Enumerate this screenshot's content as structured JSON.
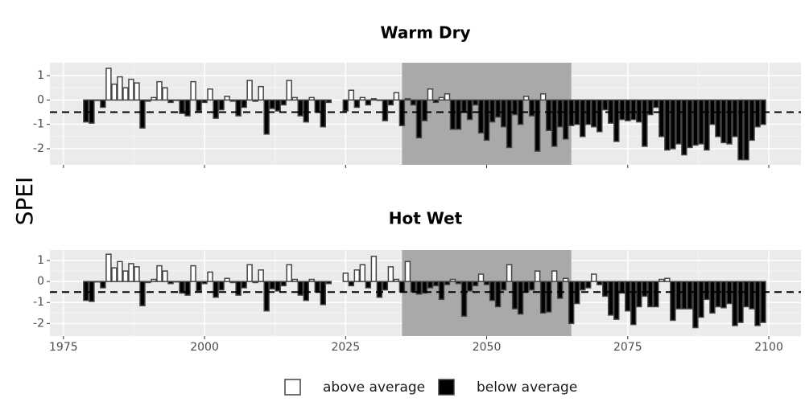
{
  "ylabel": "SPEI",
  "legend": [
    {
      "label": "above average",
      "color": "#ffffff"
    },
    {
      "label": "below average",
      "color": "#000000"
    }
  ],
  "chart_data": [
    {
      "type": "bar",
      "title": "Warm Dry",
      "hline": -0.5,
      "highlight": [
        2035,
        2065
      ],
      "grid": true,
      "xtick_labels": false,
      "xlim": [
        1972.6,
        2105.7
      ],
      "xticks": [
        1975,
        2000,
        2025,
        2050,
        2075,
        2100
      ],
      "ylim": [
        -2.66,
        1.53
      ],
      "yticks": [
        1,
        0,
        -1,
        -2
      ],
      "x": [
        1979,
        1980,
        1981,
        1982,
        1983,
        1984,
        1985,
        1986,
        1987,
        1988,
        1989,
        1990,
        1991,
        1992,
        1993,
        1994,
        1995,
        1996,
        1997,
        1998,
        1999,
        2000,
        2001,
        2002,
        2003,
        2004,
        2005,
        2006,
        2007,
        2008,
        2009,
        2010,
        2011,
        2012,
        2013,
        2014,
        2015,
        2016,
        2017,
        2018,
        2019,
        2020,
        2021,
        2022,
        2023,
        2024,
        2025,
        2026,
        2027,
        2028,
        2029,
        2030,
        2031,
        2032,
        2033,
        2034,
        2035,
        2036,
        2037,
        2038,
        2039,
        2040,
        2041,
        2042,
        2043,
        2044,
        2045,
        2046,
        2047,
        2048,
        2049,
        2050,
        2051,
        2052,
        2053,
        2054,
        2055,
        2056,
        2057,
        2058,
        2059,
        2060,
        2061,
        2062,
        2063,
        2064,
        2065,
        2066,
        2067,
        2068,
        2069,
        2070,
        2071,
        2072,
        2073,
        2074,
        2075,
        2076,
        2077,
        2078,
        2079,
        2080,
        2081,
        2082,
        2083,
        2084,
        2085,
        2086,
        2087,
        2088,
        2089,
        2090,
        2091,
        2092,
        2093,
        2094,
        2095,
        2096,
        2097,
        2098,
        2099
      ],
      "series": [
        {
          "values": [
            -0.9,
            -0.95,
            0,
            -0.3,
            1.3,
            0.65,
            0.95,
            0.5,
            0.85,
            0.7,
            -1.15,
            -0.05,
            0.1,
            0.75,
            0.5,
            -0.1,
            0,
            -0.55,
            -0.65,
            0.75,
            -0.45,
            -0.1,
            0.45,
            -0.75,
            -0.4,
            0.15,
            -0.05,
            -0.65,
            -0.3,
            0.8,
            -0.05,
            0.55,
            -1.4,
            -0.35,
            -0.45,
            -0.2,
            0.8,
            0.1,
            -0.65,
            -0.9,
            0.1,
            -0.5,
            -1.1,
            -0.1,
            null,
            null,
            -0.45,
            0.4,
            -0.3,
            0.1,
            -0.2,
            0.05,
            0,
            -0.85,
            -0.2,
            0.3,
            -1.05,
            0.05,
            -0.2,
            -1.55,
            -0.85,
            0.45,
            -0.1,
            0.1,
            0.25,
            -1.2,
            -1.2,
            -0.5,
            -0.8,
            -0.2,
            -1.35,
            -1.65,
            -0.9,
            -0.7,
            -1.1,
            -1.95,
            -0.6,
            -1,
            0.15,
            -0.65,
            -2.1,
            0.25,
            -1.25,
            -1.9,
            -1.1,
            -1.6,
            -1.05,
            -1,
            -1.5,
            -1,
            -1.1,
            -1.3,
            -0.4,
            -0.95,
            -1.7,
            -0.8,
            -0.85,
            -0.8,
            -0.9,
            -1.9,
            -0.6,
            -0.3,
            -1.5,
            -2.05,
            -2,
            -1.8,
            -2.25,
            -1.95,
            -1.85,
            -1.8,
            -2.05,
            -1,
            -1.5,
            -1.75,
            -1.8,
            -1.5,
            -2.45,
            -2.45,
            -1.65,
            -1.1,
            -1
          ]
        }
      ]
    },
    {
      "type": "bar",
      "title": "Hot Wet",
      "hline": -0.5,
      "highlight": [
        2035,
        2065
      ],
      "grid": true,
      "xtick_labels": true,
      "xlim": [
        1972.6,
        2105.7
      ],
      "xticks": [
        1975,
        2000,
        2025,
        2050,
        2075,
        2100
      ],
      "ylim": [
        -2.6,
        1.5
      ],
      "yticks": [
        1,
        0,
        -1,
        -2
      ],
      "x": [
        1979,
        1980,
        1981,
        1982,
        1983,
        1984,
        1985,
        1986,
        1987,
        1988,
        1989,
        1990,
        1991,
        1992,
        1993,
        1994,
        1995,
        1996,
        1997,
        1998,
        1999,
        2000,
        2001,
        2002,
        2003,
        2004,
        2005,
        2006,
        2007,
        2008,
        2009,
        2010,
        2011,
        2012,
        2013,
        2014,
        2015,
        2016,
        2017,
        2018,
        2019,
        2020,
        2021,
        2022,
        2023,
        2024,
        2025,
        2026,
        2027,
        2028,
        2029,
        2030,
        2031,
        2032,
        2033,
        2034,
        2035,
        2036,
        2037,
        2038,
        2039,
        2040,
        2041,
        2042,
        2043,
        2044,
        2045,
        2046,
        2047,
        2048,
        2049,
        2050,
        2051,
        2052,
        2053,
        2054,
        2055,
        2056,
        2057,
        2058,
        2059,
        2060,
        2061,
        2062,
        2063,
        2064,
        2065,
        2066,
        2067,
        2068,
        2069,
        2070,
        2071,
        2072,
        2073,
        2074,
        2075,
        2076,
        2077,
        2078,
        2079,
        2080,
        2081,
        2082,
        2083,
        2084,
        2085,
        2086,
        2087,
        2088,
        2089,
        2090,
        2091,
        2092,
        2093,
        2094,
        2095,
        2096,
        2097,
        2098,
        2099
      ],
      "series": [
        {
          "values": [
            -0.9,
            -0.95,
            0,
            -0.3,
            1.3,
            0.65,
            0.95,
            0.5,
            0.85,
            0.7,
            -1.15,
            -0.05,
            0.1,
            0.75,
            0.5,
            -0.1,
            0,
            -0.55,
            -0.65,
            0.75,
            -0.45,
            -0.1,
            0.45,
            -0.75,
            -0.4,
            0.15,
            -0.05,
            -0.65,
            -0.3,
            0.8,
            -0.05,
            0.55,
            -1.4,
            -0.35,
            -0.45,
            -0.2,
            0.8,
            0.1,
            -0.65,
            -0.9,
            0.1,
            -0.5,
            -1.1,
            -0.1,
            null,
            null,
            0.4,
            -0.2,
            0.55,
            0.8,
            -0.3,
            1.2,
            -0.75,
            -0.4,
            0.7,
            0.1,
            -0.5,
            0.95,
            -0.5,
            -0.6,
            -0.55,
            -0.3,
            -0.2,
            -0.85,
            -0.15,
            0.1,
            -0.1,
            -1.65,
            -0.45,
            -0.2,
            0.35,
            -0.15,
            -0.9,
            -1.2,
            -0.4,
            0.8,
            -1.3,
            -1.55,
            -0.5,
            -0.4,
            0.5,
            -1.5,
            -1.45,
            0.5,
            -0.8,
            0.15,
            -2,
            -1.05,
            -0.4,
            -0.3,
            0.35,
            -0.15,
            -0.7,
            -1.6,
            -1.8,
            -0.55,
            -1.4,
            -2.05,
            -1.2,
            -0.7,
            -1.2,
            -1.2,
            0.1,
            0.15,
            -1.85,
            -1.3,
            -1.3,
            -1.3,
            -2.2,
            -1.7,
            -0.85,
            -1.5,
            -1.2,
            -1.25,
            -1.05,
            -2.1,
            -1.95,
            -1.2,
            -1.3,
            -2.1,
            -1.95
          ]
        }
      ]
    }
  ]
}
